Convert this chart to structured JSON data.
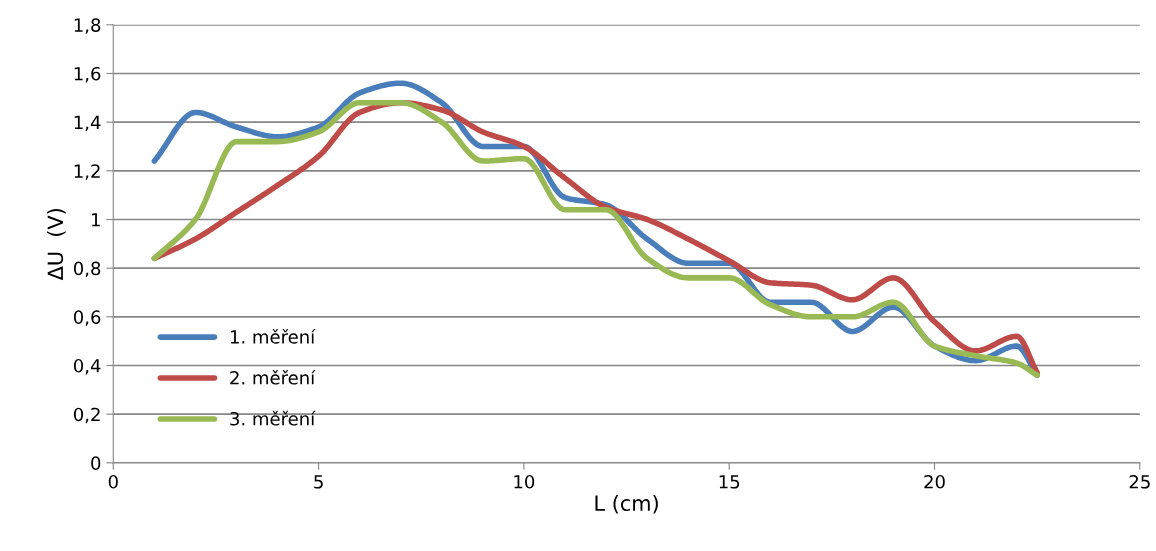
{
  "chart_data": {
    "type": "line",
    "xlabel": "L (cm)",
    "ylabel": "ΔU  (V)",
    "x": [
      1,
      2,
      3,
      4,
      5,
      6,
      7,
      8,
      9,
      10,
      11,
      12,
      13,
      14,
      15,
      16,
      17,
      18,
      19,
      20,
      21,
      22,
      22.5
    ],
    "series": [
      {
        "name": "1. měření",
        "color": "#4a7ebb",
        "values": [
          1.24,
          1.44,
          1.38,
          1.34,
          1.38,
          1.52,
          1.56,
          1.48,
          1.3,
          1.3,
          1.09,
          1.06,
          0.92,
          0.82,
          0.82,
          0.66,
          0.66,
          0.54,
          0.64,
          0.48,
          0.42,
          0.48,
          0.36
        ]
      },
      {
        "name": "2. měření",
        "color": "#be4b48",
        "values": [
          0.84,
          0.92,
          1.03,
          1.14,
          1.26,
          1.44,
          1.48,
          1.45,
          1.36,
          1.3,
          1.17,
          1.05,
          1.0,
          0.92,
          0.83,
          0.74,
          0.73,
          0.67,
          0.76,
          0.58,
          0.46,
          0.52,
          0.37
        ]
      },
      {
        "name": "3. měření",
        "color": "#98b954",
        "values": [
          0.84,
          1.0,
          1.32,
          1.32,
          1.36,
          1.48,
          1.48,
          1.4,
          1.24,
          1.25,
          1.04,
          1.04,
          0.84,
          0.76,
          0.76,
          0.65,
          0.6,
          0.6,
          0.66,
          0.48,
          0.44,
          0.41,
          0.36
        ]
      }
    ],
    "xlim": [
      0,
      25
    ],
    "xticks": [
      0,
      5,
      10,
      15,
      20,
      25
    ],
    "ylim": [
      0,
      1.8
    ],
    "yticks": [
      0,
      {
        "value": 0.2,
        "label": "0,2"
      },
      {
        "value": 0.4,
        "label": "0,4"
      },
      {
        "value": 0.6,
        "label": "0,6"
      },
      {
        "value": 0.8,
        "label": "0,8"
      },
      1,
      {
        "value": 1.2,
        "label": "1,2"
      },
      {
        "value": 1.4,
        "label": "1,4"
      },
      {
        "value": 1.6,
        "label": "1,6"
      },
      {
        "value": 1.8,
        "label": "1,8"
      }
    ],
    "grid": "y",
    "legend": "bottom left",
    "marker": "none",
    "line_style": "solid"
  }
}
